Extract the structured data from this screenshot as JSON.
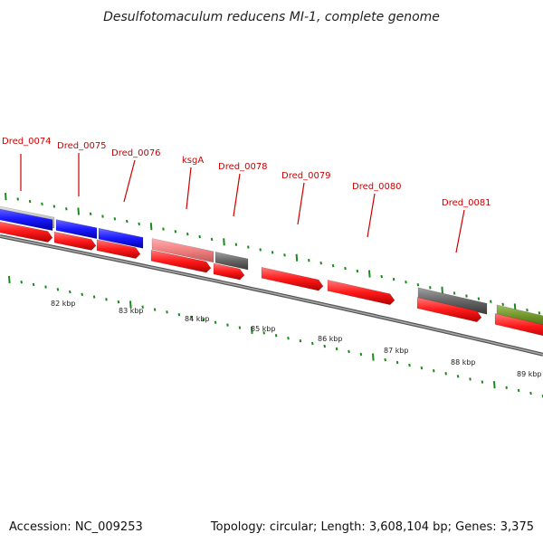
{
  "title": "Desulfotomaculum reducens MI-1, complete genome",
  "footer": {
    "accession": "Accession: NC_009253",
    "stats": "Topology: circular; Length: 3,608,104 bp; Genes: 3,375"
  },
  "colors": {
    "cds_forward": "#1a1aff",
    "cds_reverse": "#ff1a1a",
    "rna": "#f08080",
    "other_gene": "#666666",
    "highlight": "#6b8e23",
    "ticks": "#1a8a1a",
    "label": "#cc0000"
  },
  "gene_labels": [
    "Dred_0074",
    "Dred_0075",
    "Dred_0076",
    "ksgA",
    "Dred_0078",
    "Dred_0079",
    "Dred_0080",
    "Dred_0081"
  ],
  "kbp_labels": [
    "82 kbp",
    "83 kbp",
    "84 kbp",
    "85 kbp",
    "86 kbp",
    "87 kbp",
    "88 kbp",
    "89 kbp"
  ]
}
